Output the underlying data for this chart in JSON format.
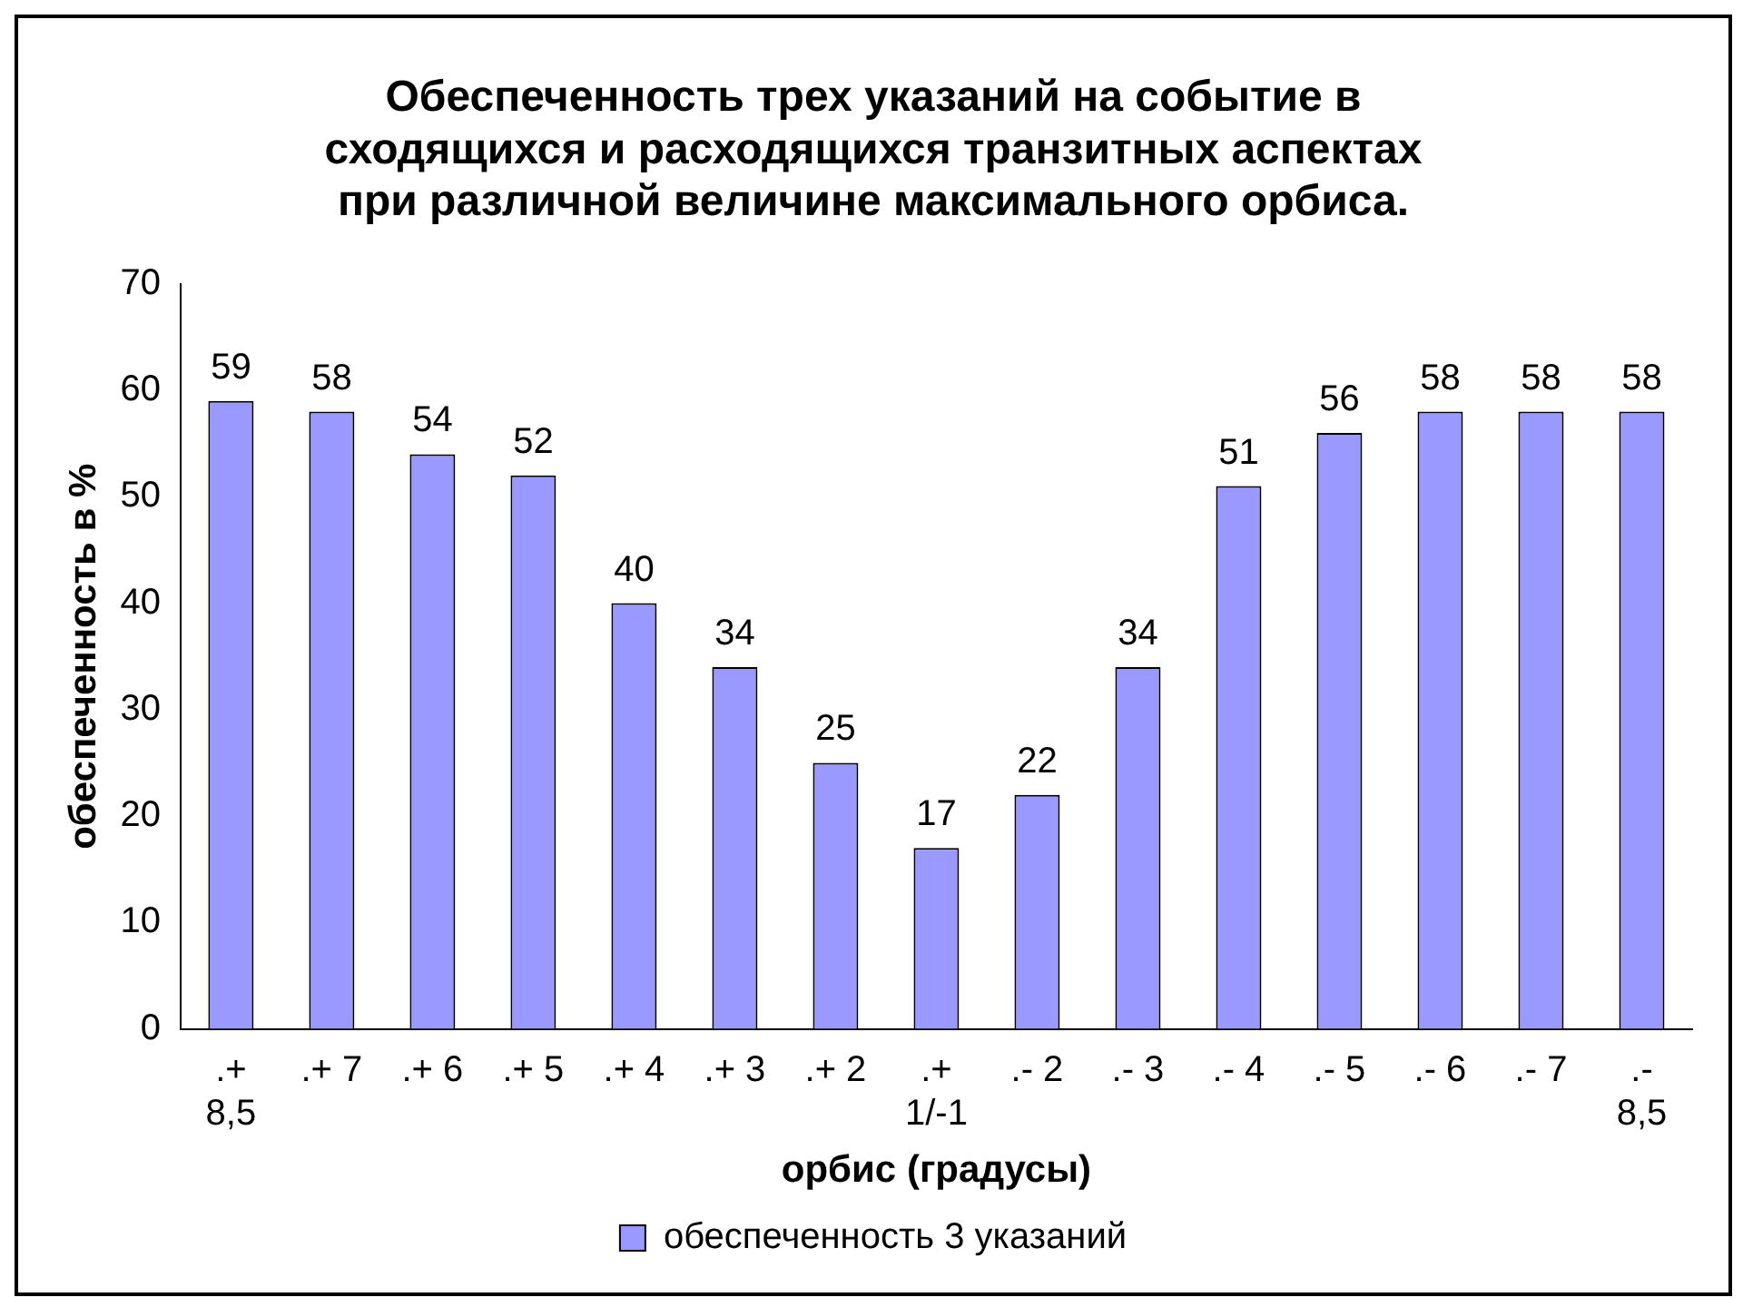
{
  "chart_data": {
    "type": "bar",
    "title": "Обеспеченность трех указаний на событие в\nсходящихся и расходящихся транзитных аспектах\nпри различной величине максимального орбиса.",
    "xlabel": "орбис (градусы)",
    "ylabel": "обеспеченность в %",
    "categories": [
      ".+ 8,5",
      ".+ 7",
      ".+ 6",
      ".+ 5",
      ".+ 4",
      ".+ 3",
      ".+ 2",
      ".+ 1/-1",
      ".- 2",
      ".- 3",
      ".- 4",
      ".- 5",
      ".- 6",
      ".- 7",
      ".- 8,5"
    ],
    "series": [
      {
        "name": "обеспеченность 3 указаний",
        "color": "#9999ff",
        "values": [
          59,
          58,
          54,
          52,
          40,
          34,
          25,
          17,
          22,
          34,
          51,
          56,
          58,
          58,
          58
        ]
      }
    ],
    "ylim": [
      0,
      70
    ],
    "yticks": [
      0,
      10,
      20,
      30,
      40,
      50,
      60,
      70
    ],
    "grid": false,
    "legend": "bottom",
    "data_labels": true
  }
}
